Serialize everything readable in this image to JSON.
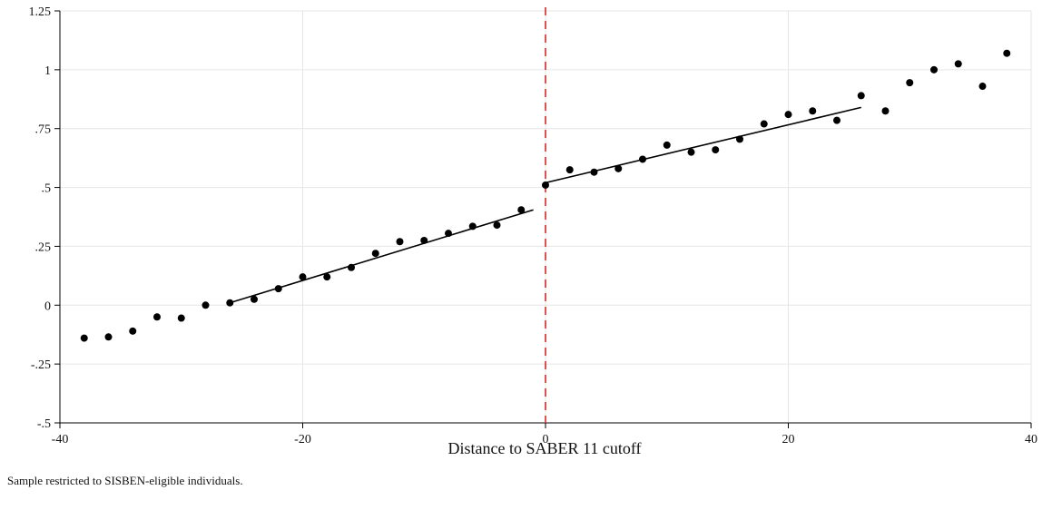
{
  "chart_data": {
    "type": "scatter",
    "xlabel": "Distance to SABER 11 cutoff",
    "ylabel": "",
    "note": "Sample restricted to SISBEN-eligible individuals.",
    "xlim": [
      -40,
      40
    ],
    "ylim": [
      -0.5,
      1.25
    ],
    "x_ticks": [
      {
        "value": -40,
        "label": "-40"
      },
      {
        "value": -20,
        "label": "-20"
      },
      {
        "value": 0,
        "label": "0"
      },
      {
        "value": 20,
        "label": "20"
      },
      {
        "value": 40,
        "label": "40"
      }
    ],
    "y_ticks": [
      {
        "value": -0.5,
        "label": "-.5"
      },
      {
        "value": -0.25,
        "label": "-.25"
      },
      {
        "value": 0,
        "label": "0"
      },
      {
        "value": 0.25,
        "label": ".25"
      },
      {
        "value": 0.5,
        "label": ".5"
      },
      {
        "value": 0.75,
        "label": ".75"
      },
      {
        "value": 1,
        "label": "1"
      },
      {
        "value": 1.25,
        "label": "1.25"
      }
    ],
    "grid": true,
    "cutoff": 0,
    "points": {
      "x": [
        -38,
        -36,
        -34,
        -32,
        -30,
        -28,
        -26,
        -24,
        -22,
        -20,
        -18,
        -16,
        -14,
        -12,
        -10,
        -8,
        -6,
        -4,
        -2,
        0,
        2,
        4,
        6,
        8,
        10,
        12,
        14,
        16,
        18,
        20,
        22,
        24,
        26,
        28,
        30,
        32,
        34,
        36,
        38
      ],
      "y": [
        -0.14,
        -0.135,
        -0.11,
        -0.05,
        -0.055,
        0,
        0.01,
        0.025,
        0.07,
        0.12,
        0.12,
        0.16,
        0.22,
        0.27,
        0.275,
        0.305,
        0.335,
        0.34,
        0.405,
        0.51,
        0.575,
        0.565,
        0.58,
        0.62,
        0.68,
        0.65,
        0.66,
        0.705,
        0.77,
        0.81,
        0.825,
        0.785,
        0.89,
        0.825,
        0.945,
        1.0,
        1.025,
        0.93,
        1.07
      ]
    },
    "fit_lines": [
      {
        "x": [
          -26,
          -1
        ],
        "y": [
          0.01,
          0.405
        ]
      },
      {
        "x": [
          0,
          26
        ],
        "y": [
          0.52,
          0.84
        ]
      }
    ],
    "colors": {
      "points": "#000000",
      "fit": "#000000",
      "cutoff": "#d62728",
      "grid": "#e6e6e6",
      "axis": "#000000"
    }
  }
}
